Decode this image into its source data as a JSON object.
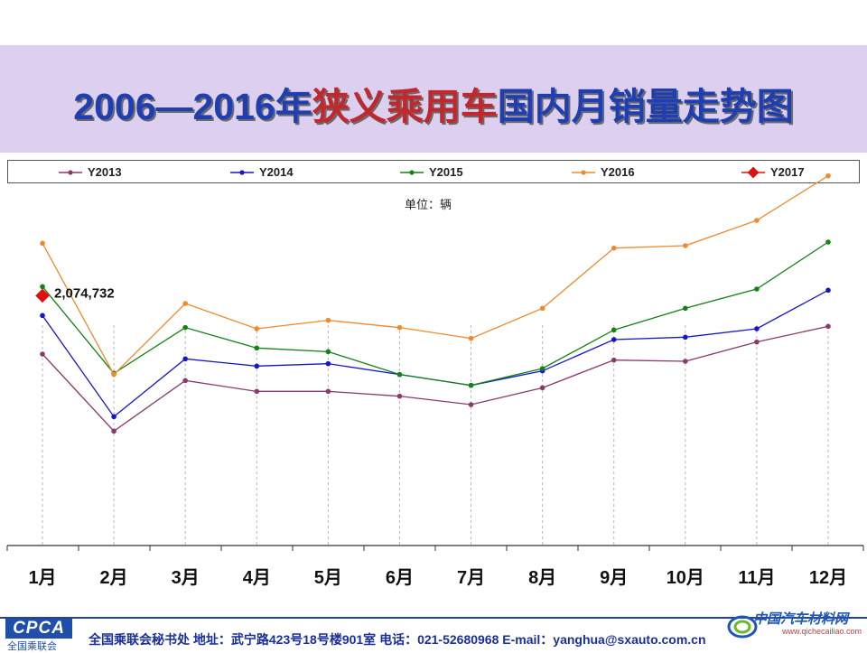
{
  "header": {
    "title_pre": "2006—2016年",
    "title_highlight": "狭义乘用车",
    "title_post": "国内月销量走势图"
  },
  "unit_label": "单位：辆",
  "colors": {
    "Y2013": "#8b3a6b",
    "Y2014": "#1616c8",
    "Y2015": "#148214",
    "Y2016": "#f08a2c",
    "Y2017": "#e01010"
  },
  "chart_data": {
    "type": "line",
    "title": "2006—2016年狭义乘用车国内月销量走势图",
    "ylabel": "单位：辆",
    "categories": [
      "1月",
      "2月",
      "3月",
      "4月",
      "5月",
      "6月",
      "7月",
      "8月",
      "9月",
      "10月",
      "11月",
      "12月"
    ],
    "ylim": [
      0,
      3000000
    ],
    "grid": "vertical-dashed",
    "legend_position": "top",
    "series": [
      {
        "name": "Y2013",
        "values": [
          1590000,
          950000,
          1370000,
          1280000,
          1280000,
          1240000,
          1170000,
          1310000,
          1540000,
          1530000,
          1690000,
          1820000
        ]
      },
      {
        "name": "Y2014",
        "values": [
          1910000,
          1070000,
          1550000,
          1490000,
          1510000,
          1420000,
          1330000,
          1450000,
          1710000,
          1730000,
          1800000,
          2120000
        ]
      },
      {
        "name": "Y2015",
        "values": [
          2150000,
          1430000,
          1810000,
          1640000,
          1610000,
          1420000,
          1330000,
          1470000,
          1790000,
          1970000,
          2130000,
          2520000
        ]
      },
      {
        "name": "Y2016",
        "values": [
          2510000,
          1420000,
          2010000,
          1800000,
          1870000,
          1810000,
          1720000,
          1970000,
          2470000,
          2490000,
          2700000,
          3070000
        ]
      },
      {
        "name": "Y2017",
        "values": [
          2074732,
          null,
          null,
          null,
          null,
          null,
          null,
          null,
          null,
          null,
          null,
          null
        ],
        "data_labels": [
          "2,074,732"
        ]
      }
    ]
  },
  "footer": {
    "logo_mark": "CPCA",
    "logo_sub": "全国乘联会",
    "contact": "全国乘联会秘书处  地址：武宁路423号18号楼901室    电话：021-52680968   E-mail：yanghua@sxauto.com.cn",
    "watermark": "中国汽车材料网",
    "watermark_url": "www.qichecailiao.com"
  }
}
